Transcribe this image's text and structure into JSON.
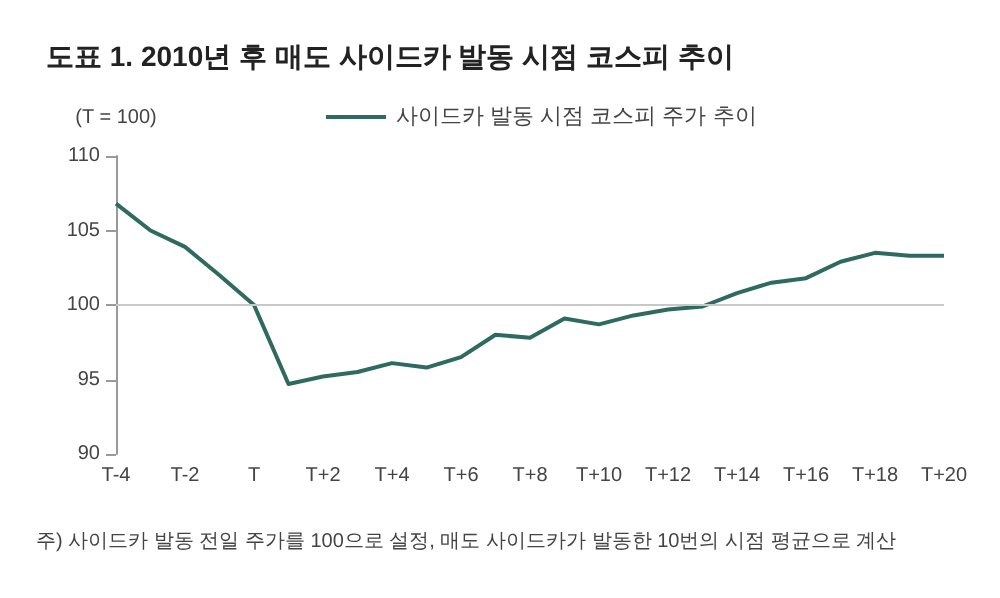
{
  "chart_data": {
    "type": "line",
    "title": "도표 1. 2010년 후 매도 사이드카 발동 시점 코스피 추이",
    "ylabel": "(T = 100)",
    "categories": [
      "T-4",
      null,
      "T-2",
      null,
      "T",
      null,
      "T+2",
      null,
      "T+4",
      null,
      "T+6",
      null,
      "T+8",
      null,
      "T+10",
      null,
      "T+12",
      null,
      "T+14",
      null,
      "T+16",
      null,
      "T+18",
      null,
      "T+20"
    ],
    "series": [
      {
        "name": "사이드카 발동 시점 코스피 주가 추이",
        "color": "#2e6b5e",
        "values": [
          106.8,
          105.0,
          103.9,
          102.0,
          100.0,
          94.7,
          95.2,
          95.5,
          96.1,
          95.8,
          96.5,
          98.0,
          97.8,
          99.1,
          98.7,
          99.3,
          99.7,
          99.9,
          100.8,
          101.5,
          101.8,
          102.9,
          103.5,
          103.3,
          103.3
        ]
      }
    ],
    "ylim": [
      90,
      110
    ],
    "yticks": [
      90,
      95,
      100,
      105,
      110
    ],
    "ref_lines": [
      {
        "axis": "y",
        "value": 100,
        "color": "#c8c8c8"
      }
    ],
    "legend": "top",
    "grid": false,
    "marker": "none",
    "line_style": "solid",
    "annotations": [
      "주) 사이드카 발동 전일 주가를 100으로 설정, 매도 사이드카가 발동한 10번의 시점 평균으로 계산"
    ]
  }
}
